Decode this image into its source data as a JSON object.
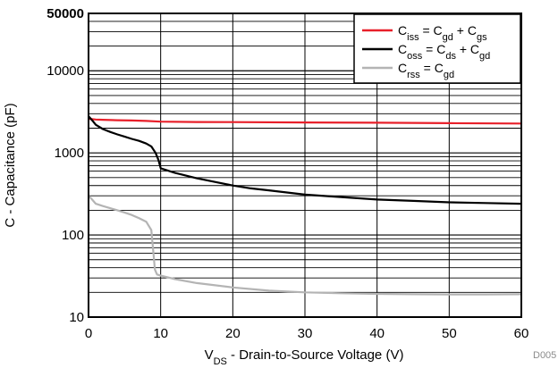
{
  "chart_data": {
    "type": "line",
    "xlabel": {
      "main": "V",
      "sub": "DS",
      "rest": " - Drain-to-Source Voltage (V)"
    },
    "ylabel": "C - Capacitance (pF)",
    "y_scale": "log",
    "xlim": [
      0,
      60
    ],
    "ylim": [
      10,
      50000
    ],
    "x_ticks": [
      0,
      10,
      20,
      30,
      40,
      50,
      60
    ],
    "x_tick_labels": [
      "0",
      "10",
      "20",
      "30",
      "40",
      "50",
      "60"
    ],
    "y_ticks": [
      10,
      100,
      1000,
      10000,
      50000
    ],
    "y_tick_labels": [
      "10",
      "100",
      "1000",
      "10000",
      "50000"
    ],
    "grid": true,
    "legend_position": "top-right",
    "legend": [
      {
        "name": "Ciss = Cgd + Cgs",
        "parts": [
          "C",
          "iss",
          " = C",
          "gd",
          " + C",
          "gs"
        ]
      },
      {
        "name": "Coss = Cds + Cgd",
        "parts": [
          "C",
          "oss",
          " = C",
          "ds",
          " + C",
          "gd"
        ]
      },
      {
        "name": "Crss = Cgd",
        "parts": [
          "C",
          "rss",
          " = C",
          "gd"
        ]
      }
    ],
    "series": [
      {
        "color": "#e8202a",
        "x": [
          0,
          1,
          2,
          4,
          6,
          8,
          10,
          15,
          20,
          30,
          40,
          50,
          60
        ],
        "y": [
          2600,
          2550,
          2530,
          2500,
          2480,
          2450,
          2400,
          2380,
          2370,
          2350,
          2330,
          2300,
          2280
        ]
      },
      {
        "color": "#000000",
        "x": [
          0,
          0.5,
          1,
          2,
          3,
          4,
          5,
          6,
          7,
          8,
          8.7,
          9.3,
          9.7,
          10,
          12,
          15,
          20,
          22.5,
          25,
          30,
          35,
          40,
          45,
          50,
          55,
          60
        ],
        "y": [
          2800,
          2500,
          2200,
          1950,
          1800,
          1680,
          1580,
          1480,
          1400,
          1300,
          1200,
          1000,
          820,
          650,
          570,
          490,
          400,
          370,
          350,
          310,
          290,
          270,
          260,
          250,
          245,
          240
        ]
      },
      {
        "color": "#b4b4b4",
        "x": [
          0,
          0.5,
          1,
          2,
          3,
          4,
          5,
          6,
          7,
          8,
          8.7,
          9,
          9.2,
          9.5,
          10,
          12,
          15,
          20,
          25,
          30,
          35,
          40,
          45,
          50,
          55,
          60
        ],
        "y": [
          300,
          270,
          240,
          225,
          212,
          200,
          188,
          175,
          160,
          145,
          115,
          60,
          38,
          33,
          32,
          29,
          26,
          23,
          21,
          20,
          19.5,
          19.2,
          19,
          18.9,
          18.9,
          19
        ]
      }
    ]
  },
  "watermark": "D005",
  "colors": {
    "grid": "#000000",
    "background": "#ffffff",
    "watermark": "#8c8c8c"
  }
}
